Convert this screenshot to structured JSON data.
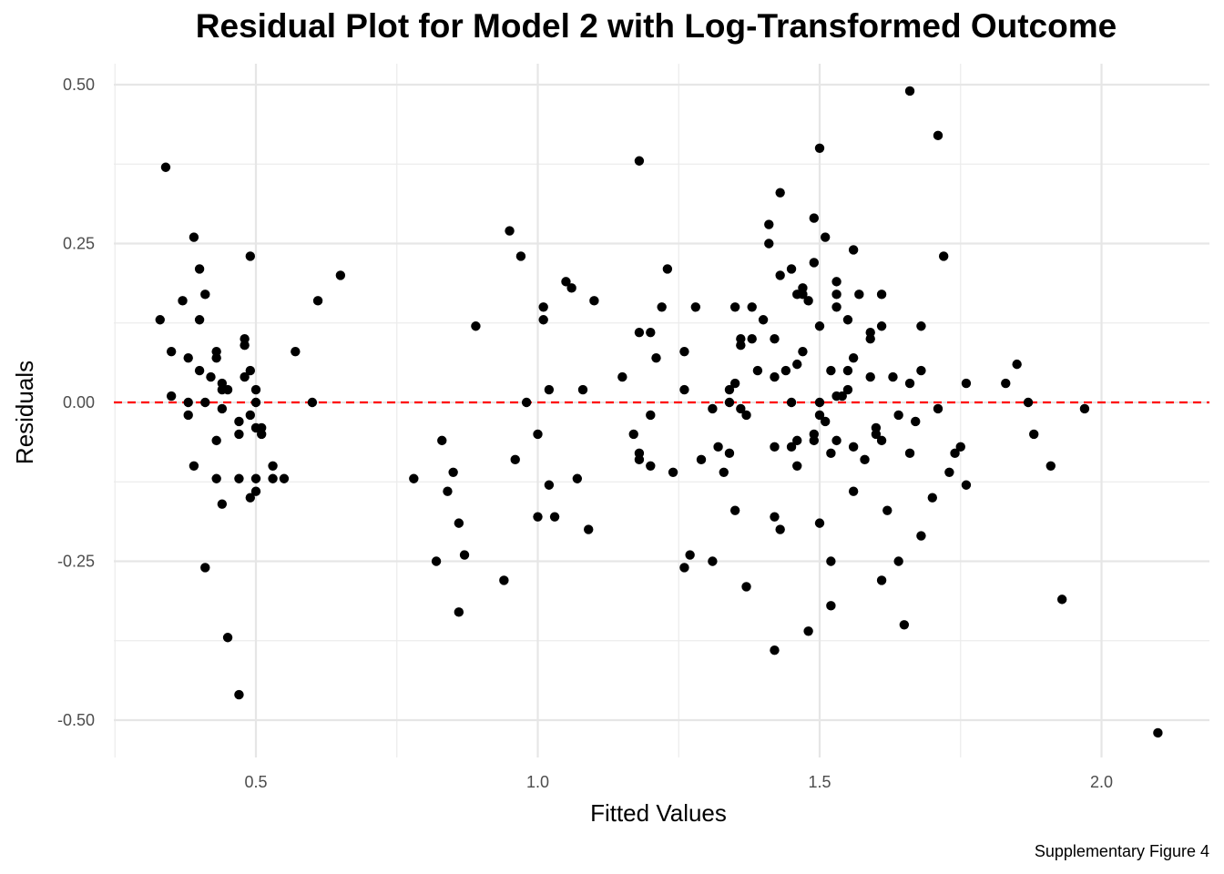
{
  "chart_data": {
    "type": "scatter",
    "title": "Residual Plot for Model 2 with Log-Transformed Outcome",
    "xlabel": "Fitted Values",
    "ylabel": "Residuals",
    "caption": "Supplementary Figure 4",
    "xlim": [
      0.25,
      2.2
    ],
    "ylim": [
      -0.56,
      0.54
    ],
    "x_ticks": [
      0.5,
      1.0,
      1.5,
      2.0
    ],
    "x_tick_labels": [
      "0.5",
      "1.0",
      "1.5",
      "2.0"
    ],
    "y_ticks": [
      -0.5,
      -0.25,
      0.0,
      0.25,
      0.5
    ],
    "y_tick_labels": [
      "-0.50",
      "-0.25",
      "0.00",
      "0.25",
      "0.50"
    ],
    "grid": true,
    "reference_line": {
      "y": 0,
      "color": "#ff0000",
      "style": "dashed"
    },
    "point_color": "#000000",
    "points": [
      [
        0.33,
        0.13
      ],
      [
        0.34,
        0.37
      ],
      [
        0.35,
        0.08
      ],
      [
        0.35,
        0.01
      ],
      [
        0.37,
        0.16
      ],
      [
        0.38,
        0.07
      ],
      [
        0.38,
        0.0
      ],
      [
        0.38,
        -0.02
      ],
      [
        0.39,
        -0.1
      ],
      [
        0.39,
        0.26
      ],
      [
        0.4,
        0.21
      ],
      [
        0.4,
        0.05
      ],
      [
        0.4,
        0.13
      ],
      [
        0.41,
        0.17
      ],
      [
        0.41,
        -0.26
      ],
      [
        0.42,
        0.04
      ],
      [
        0.41,
        0.0
      ],
      [
        0.43,
        0.08
      ],
      [
        0.43,
        0.07
      ],
      [
        0.43,
        -0.06
      ],
      [
        0.43,
        -0.12
      ],
      [
        0.44,
        0.02
      ],
      [
        0.44,
        0.03
      ],
      [
        0.44,
        -0.01
      ],
      [
        0.44,
        -0.16
      ],
      [
        0.45,
        0.02
      ],
      [
        0.45,
        -0.37
      ],
      [
        0.47,
        -0.46
      ],
      [
        0.47,
        -0.12
      ],
      [
        0.47,
        -0.03
      ],
      [
        0.47,
        -0.05
      ],
      [
        0.48,
        0.09
      ],
      [
        0.48,
        0.1
      ],
      [
        0.48,
        0.04
      ],
      [
        0.49,
        0.23
      ],
      [
        0.49,
        0.05
      ],
      [
        0.49,
        -0.02
      ],
      [
        0.49,
        -0.15
      ],
      [
        0.5,
        -0.14
      ],
      [
        0.5,
        0.02
      ],
      [
        0.5,
        0.0
      ],
      [
        0.5,
        -0.04
      ],
      [
        0.5,
        -0.12
      ],
      [
        0.51,
        -0.05
      ],
      [
        0.51,
        -0.04
      ],
      [
        0.53,
        -0.1
      ],
      [
        0.53,
        -0.12
      ],
      [
        0.55,
        -0.12
      ],
      [
        0.57,
        0.08
      ],
      [
        0.6,
        0.0
      ],
      [
        0.61,
        0.16
      ],
      [
        0.65,
        0.2
      ],
      [
        0.78,
        -0.12
      ],
      [
        0.82,
        -0.25
      ],
      [
        0.83,
        -0.06
      ],
      [
        0.84,
        -0.14
      ],
      [
        0.85,
        -0.11
      ],
      [
        0.86,
        -0.19
      ],
      [
        0.86,
        -0.33
      ],
      [
        0.87,
        -0.24
      ],
      [
        0.89,
        0.12
      ],
      [
        0.94,
        -0.28
      ],
      [
        0.95,
        0.27
      ],
      [
        0.96,
        -0.09
      ],
      [
        0.97,
        0.23
      ],
      [
        0.98,
        0.0
      ],
      [
        1.0,
        -0.05
      ],
      [
        1.0,
        -0.18
      ],
      [
        1.01,
        0.15
      ],
      [
        1.01,
        0.13
      ],
      [
        1.02,
        -0.13
      ],
      [
        1.02,
        0.02
      ],
      [
        1.03,
        -0.18
      ],
      [
        1.05,
        0.19
      ],
      [
        1.06,
        0.18
      ],
      [
        1.07,
        -0.12
      ],
      [
        1.08,
        0.02
      ],
      [
        1.09,
        -0.2
      ],
      [
        1.1,
        0.16
      ],
      [
        1.15,
        0.04
      ],
      [
        1.17,
        -0.05
      ],
      [
        1.18,
        0.11
      ],
      [
        1.18,
        -0.08
      ],
      [
        1.18,
        -0.09
      ],
      [
        1.18,
        0.38
      ],
      [
        1.2,
        0.11
      ],
      [
        1.2,
        -0.02
      ],
      [
        1.2,
        -0.1
      ],
      [
        1.21,
        0.07
      ],
      [
        1.22,
        0.15
      ],
      [
        1.23,
        0.21
      ],
      [
        1.24,
        -0.11
      ],
      [
        1.26,
        0.08
      ],
      [
        1.26,
        0.02
      ],
      [
        1.26,
        -0.26
      ],
      [
        1.27,
        -0.24
      ],
      [
        1.28,
        0.15
      ],
      [
        1.29,
        -0.09
      ],
      [
        1.31,
        -0.25
      ],
      [
        1.31,
        -0.01
      ],
      [
        1.32,
        -0.07
      ],
      [
        1.33,
        -0.11
      ],
      [
        1.34,
        0.0
      ],
      [
        1.34,
        0.02
      ],
      [
        1.34,
        -0.08
      ],
      [
        1.35,
        -0.17
      ],
      [
        1.35,
        0.15
      ],
      [
        1.35,
        0.03
      ],
      [
        1.36,
        0.09
      ],
      [
        1.36,
        0.1
      ],
      [
        1.36,
        -0.01
      ],
      [
        1.37,
        -0.02
      ],
      [
        1.37,
        -0.29
      ],
      [
        1.38,
        0.15
      ],
      [
        1.38,
        0.1
      ],
      [
        1.39,
        0.05
      ],
      [
        1.4,
        0.13
      ],
      [
        1.41,
        0.25
      ],
      [
        1.41,
        0.28
      ],
      [
        1.42,
        0.04
      ],
      [
        1.42,
        0.1
      ],
      [
        1.42,
        -0.07
      ],
      [
        1.42,
        -0.18
      ],
      [
        1.42,
        -0.39
      ],
      [
        1.43,
        0.2
      ],
      [
        1.43,
        0.33
      ],
      [
        1.43,
        -0.2
      ],
      [
        1.44,
        0.05
      ],
      [
        1.45,
        0.0
      ],
      [
        1.45,
        -0.07
      ],
      [
        1.45,
        0.21
      ],
      [
        1.46,
        0.06
      ],
      [
        1.46,
        0.17
      ],
      [
        1.46,
        -0.06
      ],
      [
        1.46,
        -0.1
      ],
      [
        1.47,
        0.08
      ],
      [
        1.47,
        0.18
      ],
      [
        1.47,
        0.17
      ],
      [
        1.48,
        -0.36
      ],
      [
        1.48,
        0.16
      ],
      [
        1.49,
        0.29
      ],
      [
        1.49,
        0.22
      ],
      [
        1.49,
        -0.05
      ],
      [
        1.49,
        -0.06
      ],
      [
        1.5,
        0.0
      ],
      [
        1.5,
        0.12
      ],
      [
        1.5,
        -0.02
      ],
      [
        1.5,
        0.4
      ],
      [
        1.5,
        -0.19
      ],
      [
        1.51,
        0.26
      ],
      [
        1.51,
        -0.03
      ],
      [
        1.52,
        0.05
      ],
      [
        1.52,
        -0.08
      ],
      [
        1.52,
        -0.25
      ],
      [
        1.52,
        -0.32
      ],
      [
        1.53,
        0.15
      ],
      [
        1.53,
        0.17
      ],
      [
        1.53,
        0.19
      ],
      [
        1.53,
        -0.06
      ],
      [
        1.53,
        0.01
      ],
      [
        1.54,
        0.01
      ],
      [
        1.55,
        0.02
      ],
      [
        1.55,
        0.13
      ],
      [
        1.55,
        0.05
      ],
      [
        1.56,
        0.07
      ],
      [
        1.56,
        0.24
      ],
      [
        1.56,
        -0.07
      ],
      [
        1.56,
        -0.14
      ],
      [
        1.57,
        0.17
      ],
      [
        1.58,
        -0.09
      ],
      [
        1.59,
        0.11
      ],
      [
        1.59,
        0.1
      ],
      [
        1.59,
        0.04
      ],
      [
        1.6,
        -0.04
      ],
      [
        1.6,
        -0.05
      ],
      [
        1.61,
        0.12
      ],
      [
        1.61,
        0.17
      ],
      [
        1.61,
        -0.06
      ],
      [
        1.61,
        -0.28
      ],
      [
        1.62,
        -0.17
      ],
      [
        1.63,
        0.04
      ],
      [
        1.64,
        -0.02
      ],
      [
        1.64,
        -0.25
      ],
      [
        1.65,
        -0.35
      ],
      [
        1.66,
        0.49
      ],
      [
        1.66,
        0.03
      ],
      [
        1.66,
        -0.08
      ],
      [
        1.67,
        -0.03
      ],
      [
        1.68,
        0.05
      ],
      [
        1.68,
        0.12
      ],
      [
        1.68,
        -0.21
      ],
      [
        1.7,
        -0.15
      ],
      [
        1.71,
        -0.01
      ],
      [
        1.71,
        0.42
      ],
      [
        1.72,
        0.23
      ],
      [
        1.73,
        -0.11
      ],
      [
        1.74,
        -0.08
      ],
      [
        1.75,
        -0.07
      ],
      [
        1.76,
        0.03
      ],
      [
        1.76,
        -0.13
      ],
      [
        1.83,
        0.03
      ],
      [
        1.85,
        0.06
      ],
      [
        1.87,
        0.0
      ],
      [
        1.88,
        -0.05
      ],
      [
        1.91,
        -0.1
      ],
      [
        1.93,
        -0.31
      ],
      [
        1.97,
        -0.01
      ],
      [
        2.1,
        -0.52
      ]
    ]
  }
}
